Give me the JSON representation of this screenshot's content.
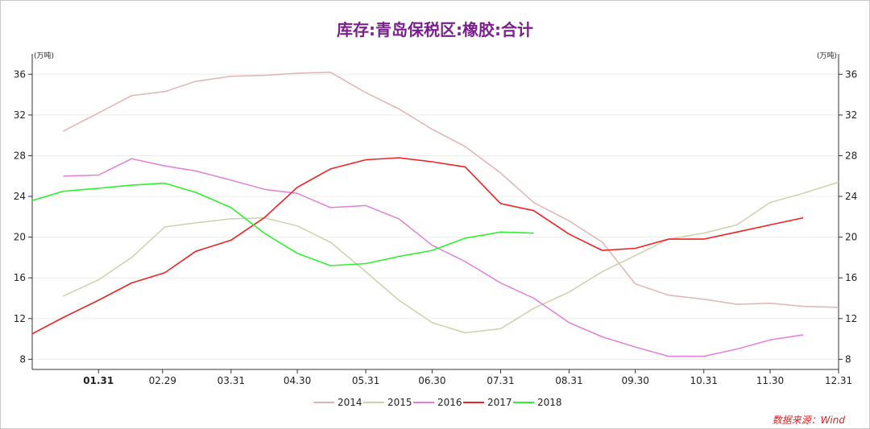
{
  "chart_data": {
    "type": "line",
    "title": "库存:青岛保税区:橡胶:合计",
    "y_unit_left": "(万吨)",
    "y_unit_right": "(万吨)",
    "ylim": [
      7,
      38
    ],
    "y_ticks": [
      8,
      12,
      16,
      20,
      24,
      28,
      32,
      36
    ],
    "x_range": [
      "01-01",
      "12-31"
    ],
    "x_ticks": [
      {
        "label": "01.31",
        "date": "01-31"
      },
      {
        "label": "02.29",
        "date": "02-29"
      },
      {
        "label": "03.31",
        "date": "03-31"
      },
      {
        "label": "04.30",
        "date": "04-30"
      },
      {
        "label": "05.31",
        "date": "05-31"
      },
      {
        "label": "06.30",
        "date": "06-30"
      },
      {
        "label": "07.31",
        "date": "07-31"
      },
      {
        "label": "08.31",
        "date": "08-31"
      },
      {
        "label": "09.30",
        "date": "09-30"
      },
      {
        "label": "10.31",
        "date": "10-31"
      },
      {
        "label": "11.30",
        "date": "11-30"
      },
      {
        "label": "12.31",
        "date": "12-31"
      }
    ],
    "legend_position": "bottom",
    "grid": "horizontal",
    "series": [
      {
        "name": "2014",
        "color": "#e0b4b4",
        "points": [
          [
            "01-15",
            30.4
          ],
          [
            "01-31",
            32.2
          ],
          [
            "02-15",
            33.9
          ],
          [
            "03-01",
            34.3
          ],
          [
            "03-15",
            35.3
          ],
          [
            "03-31",
            35.8
          ],
          [
            "04-15",
            35.9
          ],
          [
            "04-30",
            36.1
          ],
          [
            "05-15",
            36.2
          ],
          [
            "05-31",
            34.2
          ],
          [
            "06-15",
            32.6
          ],
          [
            "06-30",
            30.6
          ],
          [
            "07-15",
            28.9
          ],
          [
            "07-31",
            26.3
          ],
          [
            "08-15",
            23.4
          ],
          [
            "08-31",
            21.6
          ],
          [
            "09-15",
            19.5
          ],
          [
            "09-30",
            15.4
          ],
          [
            "10-15",
            14.3
          ],
          [
            "10-31",
            13.9
          ],
          [
            "11-15",
            13.4
          ],
          [
            "11-30",
            13.5
          ],
          [
            "12-15",
            13.2
          ],
          [
            "12-31",
            13.1
          ]
        ]
      },
      {
        "name": "2015",
        "color": "#ccd1ac",
        "points": [
          [
            "01-15",
            14.2
          ],
          [
            "01-31",
            15.8
          ],
          [
            "02-15",
            18.0
          ],
          [
            "03-01",
            21.0
          ],
          [
            "03-15",
            21.4
          ],
          [
            "03-31",
            21.8
          ],
          [
            "04-15",
            21.9
          ],
          [
            "04-30",
            21.1
          ],
          [
            "05-15",
            19.5
          ],
          [
            "05-31",
            16.6
          ],
          [
            "06-15",
            13.8
          ],
          [
            "06-30",
            11.6
          ],
          [
            "07-15",
            10.6
          ],
          [
            "07-31",
            11.0
          ],
          [
            "08-15",
            13.0
          ],
          [
            "08-31",
            14.6
          ],
          [
            "09-15",
            16.6
          ],
          [
            "09-30",
            18.2
          ],
          [
            "10-15",
            19.8
          ],
          [
            "10-31",
            20.4
          ],
          [
            "11-15",
            21.2
          ],
          [
            "11-30",
            23.4
          ],
          [
            "12-15",
            24.3
          ],
          [
            "12-31",
            25.4
          ]
        ]
      },
      {
        "name": "2016",
        "color": "#e07ed8",
        "points": [
          [
            "01-15",
            26.0
          ],
          [
            "01-31",
            26.1
          ],
          [
            "02-15",
            27.7
          ],
          [
            "03-01",
            27.0
          ],
          [
            "03-15",
            26.5
          ],
          [
            "03-31",
            25.6
          ],
          [
            "04-15",
            24.7
          ],
          [
            "04-30",
            24.3
          ],
          [
            "05-15",
            22.9
          ],
          [
            "05-31",
            23.1
          ],
          [
            "06-15",
            21.8
          ],
          [
            "06-30",
            19.2
          ],
          [
            "07-15",
            17.6
          ],
          [
            "07-31",
            15.5
          ],
          [
            "08-15",
            14.0
          ],
          [
            "08-31",
            11.6
          ],
          [
            "09-15",
            10.2
          ],
          [
            "09-30",
            9.2
          ],
          [
            "10-15",
            8.3
          ],
          [
            "10-31",
            8.3
          ],
          [
            "11-15",
            9.0
          ],
          [
            "11-30",
            9.9
          ],
          [
            "12-15",
            10.4
          ]
        ]
      },
      {
        "name": "2017",
        "color": "#ee2222",
        "points": [
          [
            "01-01",
            10.5
          ],
          [
            "01-15",
            12.1
          ],
          [
            "01-31",
            13.8
          ],
          [
            "02-15",
            15.5
          ],
          [
            "03-01",
            16.5
          ],
          [
            "03-15",
            18.6
          ],
          [
            "03-31",
            19.7
          ],
          [
            "04-15",
            21.9
          ],
          [
            "04-30",
            24.9
          ],
          [
            "05-15",
            26.7
          ],
          [
            "05-31",
            27.6
          ],
          [
            "06-15",
            27.8
          ],
          [
            "06-30",
            27.4
          ],
          [
            "07-15",
            26.9
          ],
          [
            "07-31",
            23.3
          ],
          [
            "08-15",
            22.6
          ],
          [
            "08-31",
            20.3
          ],
          [
            "09-15",
            18.7
          ],
          [
            "09-30",
            18.9
          ],
          [
            "10-15",
            19.8
          ],
          [
            "10-31",
            19.8
          ],
          [
            "11-15",
            20.5
          ],
          [
            "11-30",
            21.2
          ],
          [
            "12-15",
            21.9
          ]
        ]
      },
      {
        "name": "2018",
        "color": "#2ef22e",
        "points": [
          [
            "01-01",
            23.6
          ],
          [
            "01-15",
            24.5
          ],
          [
            "01-31",
            24.8
          ],
          [
            "02-15",
            25.1
          ],
          [
            "03-01",
            25.3
          ],
          [
            "03-15",
            24.4
          ],
          [
            "03-31",
            22.9
          ],
          [
            "04-15",
            20.4
          ],
          [
            "04-30",
            18.4
          ],
          [
            "05-15",
            17.2
          ],
          [
            "05-31",
            17.4
          ],
          [
            "06-15",
            18.1
          ],
          [
            "06-30",
            18.7
          ],
          [
            "07-15",
            19.9
          ],
          [
            "07-31",
            20.5
          ],
          [
            "08-15",
            20.4
          ]
        ]
      }
    ]
  },
  "source": "数据来源：Wind"
}
